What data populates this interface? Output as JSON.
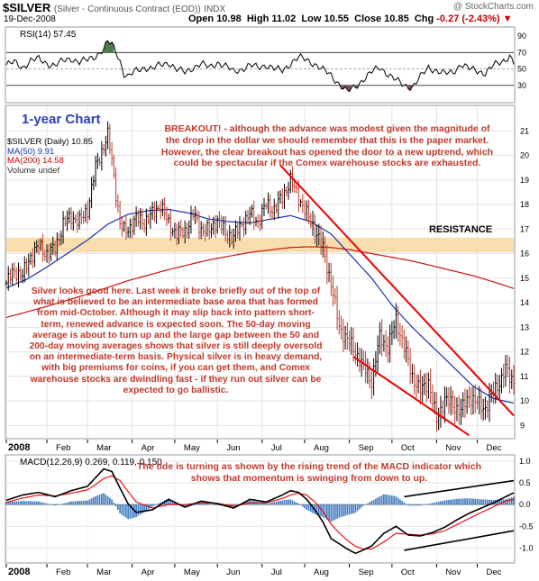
{
  "header": {
    "symbol": "$SILVER",
    "description": "(Silver - Continuous Contract (EOD))",
    "exchange": "INDX",
    "watermark": "@ StockCharts.com",
    "date": "19-Dec-2008",
    "open_label": "Open",
    "open": "10.98",
    "high_label": "High",
    "high": "11.02",
    "low_label": "Low",
    "low": "10.55",
    "close_label": "Close",
    "close": "10.85",
    "change_label": "Chg",
    "change": "-0.27 (-2.43%)"
  },
  "annotations": {
    "chart_label": "1-year Chart",
    "breakout_line1": "BREAKOUT! - although the advance was modest given the magnitude of",
    "breakout_line2": "the drop in the dollar we should remember that this is the paper market.",
    "breakout_line3": "However, the clear breakout has opened the door to a new uptrend, which",
    "breakout_line4": "could be spectacular if the Comex warehouse stocks are exhausted.",
    "silver_text": "Silver looks good here. Last week it broke briefly out of the top of what is believed to be an intermediate base area that has formed from mid-October. Although it may slip back into pattern short-term, renewed advance is expected soon. The 50-day moving average is about to turn up and the large gap between the 50 and 200-day moving averages shows that silver is still deeply oversold on an intermediate-term basis. Physical silver is in heavy demand, with big premiums for coins, if you can get them, and Comex warehouse stocks are dwindling fast - if they run out silver can be expected to go ballistic.",
    "macd_text": "The tide is turning as shown by the rising trend of the MACD indicator which shows that momentum is swinging from down to up.",
    "resistance": "RESISTANCE"
  },
  "legend": {
    "price": "$SILVER (Daily) 10.85",
    "ma50": "MA(50) 9.91",
    "ma200": "MA(200) 14.58",
    "volume": "Volume undef"
  },
  "colors": {
    "price_up": "#000000",
    "price_down": "#c0392b",
    "ma50": "#1a2fb0",
    "ma200": "#d01010",
    "annotation": "#c0392b",
    "resistance_band": "#f7d8a0",
    "macd_hist": "#3a78c0",
    "rsi_overbought_fill": "#4d7a4d",
    "rsi_oversold_fill": "#8a4a5a"
  },
  "chart_data": [
    {
      "type": "line",
      "name": "rsi",
      "title": "RSI(14) 57.45",
      "ylim": [
        10,
        100
      ],
      "yticks": [
        30,
        50,
        70,
        90
      ],
      "levels": [
        30,
        50,
        70
      ],
      "x": [
        0,
        4,
        8,
        12,
        16,
        20,
        24,
        28,
        32,
        36,
        40,
        44,
        48,
        50,
        52,
        54,
        56,
        58,
        60,
        64,
        68,
        72,
        76,
        80,
        84,
        88,
        92,
        96,
        100,
        104,
        108,
        112,
        116,
        120,
        124,
        128,
        132,
        136,
        140,
        144,
        148,
        152,
        156,
        160,
        164,
        168,
        172,
        176,
        180,
        184,
        188,
        192,
        196,
        200,
        204,
        208,
        212,
        216,
        220,
        224,
        228,
        232,
        236,
        240,
        244,
        246,
        248,
        250
      ],
      "y": [
        55,
        58,
        52,
        60,
        62,
        57,
        54,
        60,
        63,
        58,
        61,
        66,
        74,
        83,
        80,
        72,
        60,
        44,
        40,
        48,
        52,
        50,
        55,
        58,
        49,
        46,
        52,
        56,
        52,
        58,
        53,
        47,
        50,
        54,
        52,
        55,
        50,
        48,
        57,
        64,
        61,
        56,
        49,
        42,
        32,
        22,
        28,
        38,
        46,
        52,
        44,
        36,
        30,
        28,
        40,
        52,
        48,
        44,
        46,
        56,
        50,
        48,
        45,
        54,
        59,
        62,
        66,
        57
      ],
      "grid": true
    },
    {
      "type": "line",
      "name": "price",
      "title": "$SILVER (Daily) 10.85",
      "xlabel": "",
      "ylabel": "",
      "ylim": [
        8.5,
        22
      ],
      "yticks": [
        9,
        10,
        11,
        12,
        13,
        14,
        15,
        16,
        17,
        18,
        19,
        20,
        21
      ],
      "x_tick_labels": [
        "2008",
        "Feb",
        "Mar",
        "Apr",
        "May",
        "Jun",
        "Jul",
        "Aug",
        "Sep",
        "Oct",
        "Nov",
        "Dec"
      ],
      "x_tick_positions": [
        0,
        20,
        40,
        62,
        83,
        104,
        126,
        147,
        169,
        190,
        212,
        232
      ],
      "x_max": 250,
      "series": [
        {
          "name": "$SILVER (Daily)",
          "x": [
            0,
            4,
            8,
            12,
            16,
            20,
            24,
            28,
            32,
            36,
            40,
            44,
            48,
            50,
            52,
            54,
            56,
            58,
            60,
            64,
            68,
            72,
            76,
            80,
            84,
            88,
            92,
            96,
            100,
            104,
            108,
            112,
            116,
            120,
            124,
            128,
            132,
            136,
            140,
            144,
            148,
            152,
            156,
            160,
            164,
            168,
            172,
            176,
            180,
            184,
            188,
            192,
            196,
            200,
            204,
            208,
            212,
            216,
            220,
            224,
            228,
            232,
            236,
            240,
            244,
            246,
            248,
            250
          ],
          "y": [
            14.8,
            15.3,
            15.1,
            15.9,
            16.3,
            16.0,
            16.2,
            17.2,
            17.5,
            17.3,
            17.8,
            19.5,
            20.4,
            20.8,
            19.8,
            18.5,
            17.2,
            16.9,
            17.0,
            17.4,
            17.3,
            17.6,
            18.0,
            17.2,
            16.8,
            16.9,
            17.6,
            17.0,
            16.9,
            17.4,
            16.8,
            16.7,
            17.2,
            17.6,
            17.3,
            18.0,
            17.8,
            18.3,
            19.0,
            18.3,
            17.6,
            17.0,
            16.2,
            14.8,
            13.0,
            12.5,
            12.0,
            11.4,
            10.8,
            12.6,
            12.2,
            13.3,
            12.2,
            11.0,
            10.4,
            10.8,
            9.2,
            10.1,
            9.8,
            9.6,
            10.2,
            9.9,
            9.7,
            10.4,
            10.9,
            11.3,
            11.0,
            10.85
          ]
        },
        {
          "name": "MA(50)",
          "x": [
            0,
            10,
            20,
            30,
            40,
            50,
            60,
            70,
            80,
            90,
            100,
            110,
            120,
            130,
            140,
            150,
            160,
            170,
            180,
            190,
            200,
            210,
            220,
            230,
            240,
            250
          ],
          "y": [
            14.6,
            14.95,
            15.45,
            16.0,
            16.55,
            17.2,
            17.6,
            17.75,
            17.8,
            17.65,
            17.4,
            17.3,
            17.25,
            17.4,
            17.55,
            17.3,
            16.8,
            15.9,
            15.0,
            13.9,
            13.0,
            12.2,
            11.4,
            10.6,
            10.1,
            9.91
          ]
        },
        {
          "name": "MA(200)",
          "x": [
            0,
            20,
            40,
            60,
            80,
            100,
            120,
            140,
            150,
            160,
            170,
            180,
            190,
            200,
            210,
            220,
            230,
            240,
            250
          ],
          "y": [
            13.4,
            13.85,
            14.35,
            14.9,
            15.35,
            15.75,
            16.05,
            16.25,
            16.28,
            16.25,
            16.15,
            16.0,
            15.85,
            15.7,
            15.5,
            15.3,
            15.1,
            14.85,
            14.58
          ]
        }
      ],
      "resistance_band": [
        16.05,
        16.65
      ],
      "channel_upper": [
        [
          135,
          19.6
        ],
        [
          250,
          9.4
        ]
      ],
      "channel_lower": [
        [
          171,
          11.8
        ],
        [
          228,
          8.6
        ]
      ],
      "legend": "top-left",
      "grid": true
    },
    {
      "type": "line",
      "name": "macd",
      "title": "MACD(12,26,9) 0.269, 0.119, 0.150",
      "ylim": [
        -1.3,
        1.1
      ],
      "yticks": [
        -1.0,
        -0.5,
        0.0,
        0.5,
        1.0
      ],
      "x": [
        0,
        8,
        16,
        24,
        32,
        40,
        44,
        48,
        52,
        56,
        60,
        64,
        72,
        80,
        88,
        96,
        104,
        112,
        120,
        128,
        136,
        140,
        144,
        148,
        152,
        156,
        160,
        164,
        168,
        172,
        176,
        180,
        186,
        192,
        198,
        204,
        210,
        216,
        222,
        228,
        234,
        240,
        246,
        250
      ],
      "series": [
        {
          "name": "MACD",
          "y": [
            0.1,
            0.22,
            0.28,
            0.18,
            0.32,
            0.42,
            0.62,
            0.82,
            0.76,
            0.38,
            0.02,
            -0.18,
            -0.12,
            0.12,
            -0.06,
            0.08,
            0.02,
            -0.08,
            0.12,
            0.06,
            0.22,
            0.32,
            0.28,
            0.12,
            -0.12,
            -0.4,
            -0.78,
            -0.9,
            -1.02,
            -1.12,
            -1.04,
            -0.95,
            -0.66,
            -0.5,
            -0.7,
            -0.72,
            -0.64,
            -0.52,
            -0.35,
            -0.2,
            -0.08,
            0.04,
            0.18,
            0.27
          ]
        },
        {
          "name": "Signal",
          "y": [
            0.05,
            0.15,
            0.22,
            0.2,
            0.26,
            0.34,
            0.46,
            0.6,
            0.66,
            0.55,
            0.3,
            0.06,
            -0.08,
            0.0,
            0.0,
            0.04,
            0.03,
            -0.04,
            0.04,
            0.04,
            0.14,
            0.22,
            0.26,
            0.22,
            0.06,
            -0.16,
            -0.45,
            -0.65,
            -0.82,
            -0.96,
            -1.02,
            -1.02,
            -0.86,
            -0.66,
            -0.68,
            -0.7,
            -0.67,
            -0.6,
            -0.46,
            -0.32,
            -0.18,
            -0.05,
            0.08,
            0.12
          ]
        }
      ],
      "trend_upper": [
        [
          196,
          0.18
        ],
        [
          250,
          0.55
        ]
      ],
      "trend_lower": [
        [
          196,
          -1.05
        ],
        [
          250,
          -0.6
        ]
      ],
      "grid": true
    }
  ]
}
